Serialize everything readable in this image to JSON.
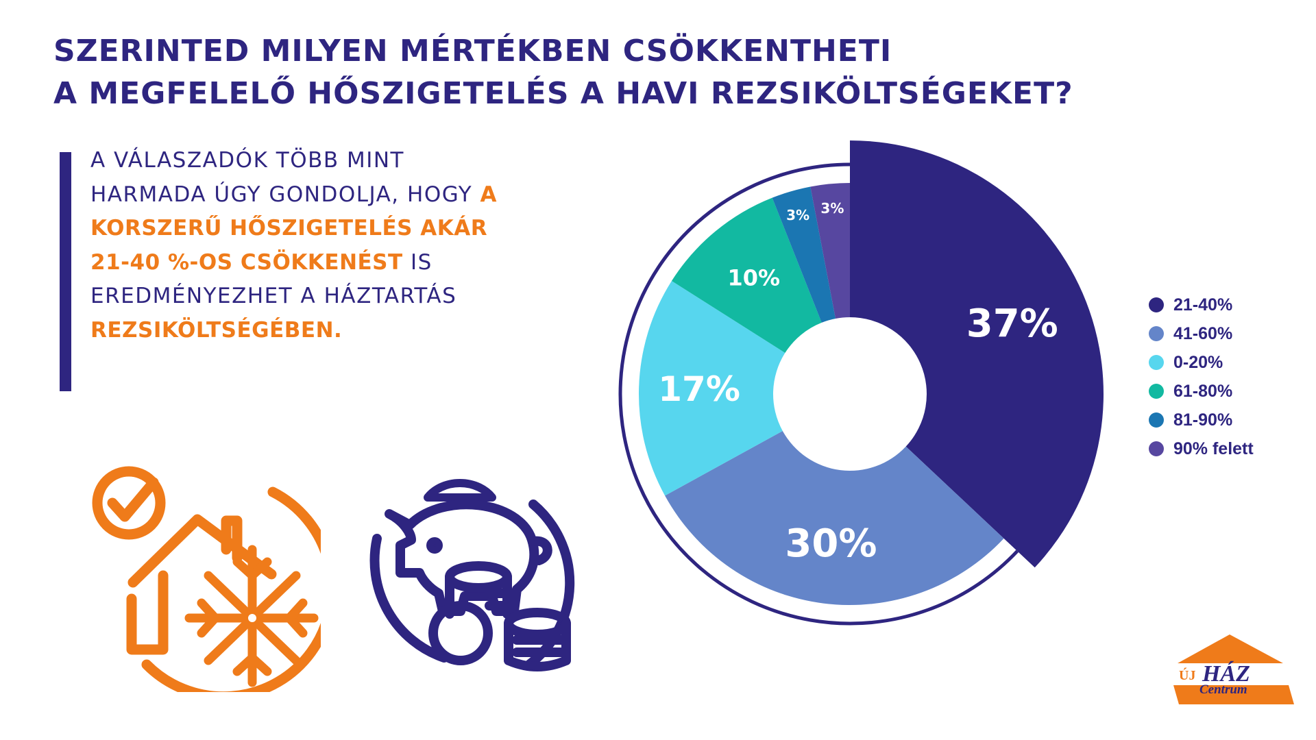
{
  "title": {
    "line1": "SZERINTED MILYEN MÉRTÉKBEN CSÖKKENTHETI",
    "line2": "A MEGFELELŐ HŐSZIGETELÉS A HAVI REZSIKÖLTSÉGEKET?"
  },
  "quote": {
    "part1": "A VÁLASZADÓK TÖBB MINT HARMADA ÚGY GONDOLJA, HOGY ",
    "highlight1": "A KORSZERŰ HŐSZIGETELÉS AKÁR 21-40 %-OS CSÖKKENÉST",
    "part2": " IS EREDMÉNYEZHET A HÁZTARTÁS ",
    "highlight2": "REZSIKÖLTSÉGÉBEN."
  },
  "colors": {
    "primary": "#2e2580",
    "accent": "#ef7b1a"
  },
  "icons": {
    "house": "house-snowflake-check-icon",
    "savings": "piggy-bank-coins-icon"
  },
  "logo": {
    "top": "ÚJ",
    "main": "HÁZ",
    "sub": "Centrum"
  },
  "chart_data": {
    "type": "pie",
    "variant": "donut",
    "title": "",
    "start_angle_deg": 0,
    "direction": "clockwise",
    "slices": [
      {
        "label": "21-40%",
        "value": 37,
        "value_label": "37%",
        "color": "#2e2580",
        "exploded": true
      },
      {
        "label": "41-60%",
        "value": 30,
        "value_label": "30%",
        "color": "#6485c9"
      },
      {
        "label": "0-20%",
        "value": 17,
        "value_label": "17%",
        "color": "#57d6ee"
      },
      {
        "label": "61-80%",
        "value": 10,
        "value_label": "10%",
        "color": "#12b9a1"
      },
      {
        "label": "81-90%",
        "value": 3,
        "value_label": "3%",
        "color": "#1b76b2"
      },
      {
        "label": "90% felett",
        "value": 3,
        "value_label": "3%",
        "color": "#5747a0"
      }
    ],
    "legend": {
      "position": "right",
      "items": [
        "21-40%",
        "41-60%",
        "0-20%",
        "61-80%",
        "81-90%",
        "90% felett"
      ]
    }
  }
}
